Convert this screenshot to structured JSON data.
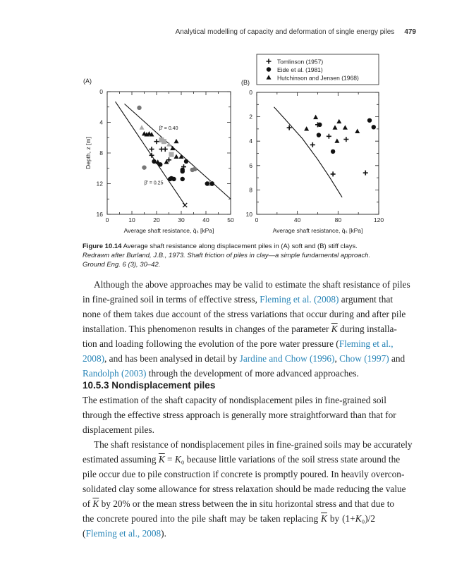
{
  "header": {
    "running_title": "Analytical modelling of capacity and deformation of single energy piles",
    "page_number": "479"
  },
  "figure": {
    "legend": [
      {
        "marker": "plus",
        "label": "Tomlinson (1957)"
      },
      {
        "marker": "circle",
        "label": "Eide et al. (1981)"
      },
      {
        "marker": "triangle",
        "label": "Hutchinson and Jensen (1968)"
      }
    ],
    "caption": {
      "label": "Figure 10.14",
      "text": " Average shaft resistance along displacement piles in (A) soft and (B) stiff clays.",
      "source": "Redrawn after Burland, J.B., 1973. Shaft friction of piles in clay—a simple fundamental approach. Ground Eng. 6 (3), 30–42."
    }
  },
  "chart_data": [
    {
      "type": "scatter",
      "panel_label": "(A)",
      "xlabel": "Average shaft resistance, q̄ₛ [kPa]",
      "ylabel": "Depth, z [m]",
      "xlim": [
        0,
        50
      ],
      "ylim": [
        0,
        16
      ],
      "y_inverted": true,
      "xticks": [
        0,
        10,
        20,
        30,
        40,
        50
      ],
      "yticks": [
        0,
        4,
        8,
        12,
        16
      ],
      "series": [
        {
          "name": "grey circles",
          "marker": "circle",
          "color": "#777777",
          "points": [
            [
              13,
              2.1
            ],
            [
              15,
              9.9
            ],
            [
              34.5,
              10.2
            ],
            [
              35.5,
              10.1
            ]
          ]
        },
        {
          "name": "grey squares",
          "marker": "square",
          "color": "#aaaaaa",
          "points": [
            [
              22,
              6.3
            ],
            [
              23,
              6.5
            ],
            [
              26,
              8.2
            ],
            [
              42,
              12
            ]
          ]
        },
        {
          "name": "light triangles",
          "marker": "triangle",
          "color": "#aaaaaa",
          "points": [
            [
              14,
              4.7
            ],
            [
              25,
              6.9
            ]
          ]
        },
        {
          "name": "triangles",
          "marker": "triangle",
          "color": "#111111",
          "points": [
            [
              15,
              5.5
            ],
            [
              16,
              5.6
            ],
            [
              17,
              5.5
            ],
            [
              18,
              5.6
            ],
            [
              28,
              6.5
            ],
            [
              26.5,
              7.4
            ],
            [
              28,
              8.5
            ],
            [
              30,
              8.5
            ],
            [
              20.5,
              9.2
            ],
            [
              24,
              9.2
            ]
          ]
        },
        {
          "name": "plus",
          "marker": "plus",
          "color": "#111111",
          "points": [
            [
              20,
              6.5
            ],
            [
              18,
              7.5
            ],
            [
              22,
              7.5
            ],
            [
              23.5,
              7.5
            ],
            [
              18,
              8.3
            ],
            [
              25,
              8.9
            ],
            [
              31,
              9.8
            ]
          ]
        },
        {
          "name": "circles",
          "marker": "circle",
          "color": "#111111",
          "points": [
            [
              19,
              9.1
            ],
            [
              21.5,
              9.5
            ],
            [
              32,
              9.1
            ],
            [
              30.5,
              10.2
            ],
            [
              30.5,
              10.4
            ],
            [
              26,
              11.3
            ],
            [
              27,
              11.4
            ],
            [
              25.5,
              11.4
            ],
            [
              30.5,
              11.4
            ],
            [
              40.5,
              12
            ],
            [
              42.5,
              12
            ]
          ]
        },
        {
          "name": "cross",
          "marker": "x",
          "color": "#111111",
          "points": [
            [
              31.5,
              14.8
            ]
          ]
        }
      ],
      "lines": [
        {
          "label": "β̄' = 0.40",
          "points": [
            [
              7,
              1.6
            ],
            [
              50,
              14
            ]
          ],
          "label_at": [
            21,
            4.7
          ]
        },
        {
          "label": "β̄' = 0.25",
          "points": [
            [
              3.3,
              1.3
            ],
            [
              31.5,
              14.8
            ]
          ],
          "label_at": [
            15,
            11.8
          ]
        }
      ]
    },
    {
      "type": "scatter",
      "panel_label": "(B)",
      "xlabel": "Average shaft resistance, q̄ₛ [kPa]",
      "ylabel": "",
      "xlim": [
        0,
        120
      ],
      "ylim": [
        0,
        10
      ],
      "y_inverted": true,
      "xticks": [
        0,
        40,
        80,
        120
      ],
      "yticks": [
        0,
        2,
        4,
        6,
        8,
        10
      ],
      "series": [
        {
          "name": "Tomlinson (1957)",
          "marker": "plus",
          "color": "#111111",
          "points": [
            [
              32,
              2.9
            ],
            [
              60,
              2.65
            ],
            [
              71,
              3.6
            ],
            [
              88,
              3.85
            ],
            [
              55,
              4.3
            ],
            [
              75,
              6.7
            ],
            [
              107,
              6.6
            ]
          ]
        },
        {
          "name": "Eide et al. (1981)",
          "marker": "circle",
          "color": "#111111",
          "points": [
            [
              62,
              2.65
            ],
            [
              61,
              3.5
            ],
            [
              75,
              4.85
            ],
            [
              111,
              2.3
            ],
            [
              115,
              2.85
            ]
          ]
        },
        {
          "name": "Hutchinson and Jensen (1968)",
          "marker": "triangle",
          "color": "#111111",
          "points": [
            [
              58,
              2.05
            ],
            [
              49,
              3
            ],
            [
              81,
              2.4
            ],
            [
              77,
              2.9
            ],
            [
              87,
              2.9
            ],
            [
              79,
              4
            ],
            [
              99,
              3.2
            ]
          ]
        }
      ],
      "lines": [
        {
          "label": "",
          "points": [
            [
              17,
              1.2
            ],
            [
              30,
              2.4
            ],
            [
              45,
              3.8
            ],
            [
              60,
              5.5
            ],
            [
              72,
              7
            ],
            [
              84,
              8.6
            ]
          ]
        }
      ]
    }
  ],
  "paragraph1": [
    {
      "indent": true,
      "segs": [
        {
          "t": "Although the above approaches may be valid to estimate the shaft resistance of piles"
        }
      ]
    },
    {
      "segs": [
        {
          "t": "in fine-grained soil in terms of effective stress, "
        },
        {
          "t": "Fleming et al. (2008)",
          "s": "link"
        },
        {
          "t": " argument that"
        }
      ]
    },
    {
      "segs": [
        {
          "t": "none of them takes due account of the stress variations that occur during and after pile"
        }
      ]
    },
    {
      "segs": [
        {
          "t": "installation. This phenomenon results in changes of the parameter "
        },
        {
          "t": "K",
          "s": "ov"
        },
        {
          "t": " during installa-"
        }
      ]
    },
    {
      "segs": [
        {
          "t": "tion and loading following the evolution of the pore water pressure ("
        },
        {
          "t": "Fleming et al.,",
          "s": "link"
        }
      ]
    },
    {
      "segs": [
        {
          "t": "2008)",
          "s": "link"
        },
        {
          "t": ", and has been analysed in detail by "
        },
        {
          "t": "Jardine and Chow (1996)",
          "s": "link"
        },
        {
          "t": ", "
        },
        {
          "t": "Chow (1997)",
          "s": "link"
        },
        {
          "t": " and"
        }
      ]
    },
    {
      "last": true,
      "segs": [
        {
          "t": "Randolph (2003)",
          "s": "link"
        },
        {
          "t": " through the development of more advanced approaches."
        }
      ]
    }
  ],
  "section_heading": "10.5.3 Nondisplacement piles",
  "paragraph2": [
    {
      "segs": [
        {
          "t": "The estimation of the shaft capacity of nondisplacement piles in fine-grained soil"
        }
      ]
    },
    {
      "segs": [
        {
          "t": "through the effective stress approach is generally more straightforward than that for"
        }
      ]
    },
    {
      "last": true,
      "segs": [
        {
          "t": "displacement piles."
        }
      ]
    },
    {
      "indent": true,
      "segs": [
        {
          "t": "The shaft resistance of nondisplacement piles in fine-grained soils may be accurately"
        }
      ]
    },
    {
      "segs": [
        {
          "t": "estimated assuming "
        },
        {
          "t": "K",
          "s": "ov"
        },
        {
          "t": " = "
        },
        {
          "t": "K",
          "s": "it"
        },
        {
          "t": "₀ because little variations of the soil stress state around the"
        }
      ]
    },
    {
      "segs": [
        {
          "t": "pile occur due to pile construction if concrete is promptly poured. In heavily overcon-"
        }
      ]
    },
    {
      "segs": [
        {
          "t": "solidated clay some allowance for stress relaxation should be made reducing the value"
        }
      ]
    },
    {
      "segs": [
        {
          "t": "of "
        },
        {
          "t": "K",
          "s": "ov"
        },
        {
          "t": " by 20% or the mean stress between the in situ horizontal stress and that due to"
        }
      ]
    },
    {
      "segs": [
        {
          "t": "the concrete poured into the pile shaft may be taken replacing "
        },
        {
          "t": "K",
          "s": "ov"
        },
        {
          "t": " by (1+"
        },
        {
          "t": "K",
          "s": "it"
        },
        {
          "t": "₀)/2"
        }
      ]
    },
    {
      "last": true,
      "segs": [
        {
          "t": "("
        },
        {
          "t": "Fleming et al., 2008",
          "s": "link"
        },
        {
          "t": ")."
        }
      ]
    }
  ]
}
